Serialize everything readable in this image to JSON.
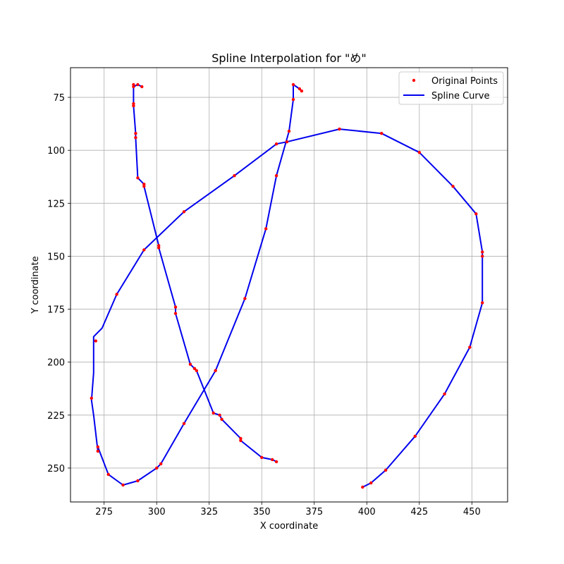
{
  "chart_data": {
    "type": "line",
    "title": "Spline Interpolation for \"め\"",
    "xlabel": "X coordinate",
    "ylabel": "Y coordinate",
    "xlim": [
      259,
      467
    ],
    "ylim": [
      266,
      61
    ],
    "y_inverted": true,
    "grid": true,
    "legend_position": "top-right",
    "xticks": [
      275,
      300,
      325,
      350,
      375,
      400,
      425,
      450
    ],
    "yticks": [
      75,
      100,
      125,
      150,
      175,
      200,
      225,
      250
    ],
    "series": [
      {
        "name": "Original Points",
        "style": "points",
        "color": "#ff0000",
        "x": [
          289,
          289,
          290,
          290,
          291,
          294,
          294,
          301,
          301,
          309,
          309,
          316,
          318,
          319,
          327,
          330,
          331,
          340,
          340,
          350,
          355,
          357,
          293,
          291,
          289,
          289,
          365,
          368,
          369,
          365,
          363,
          357,
          352,
          342,
          328,
          313,
          302,
          300,
          291,
          284,
          277,
          272,
          272,
          269,
          271,
          281,
          294,
          313,
          337,
          357,
          362,
          387,
          407,
          425,
          441,
          452,
          455,
          455,
          455,
          449,
          437,
          423,
          409,
          402,
          398
        ],
        "y": [
          69,
          79,
          92,
          94,
          113,
          116,
          117,
          145,
          146,
          174,
          177,
          201,
          203,
          204,
          224,
          225,
          227,
          236,
          237,
          245,
          246,
          247,
          70,
          69,
          70,
          78,
          69,
          71,
          72,
          76,
          91,
          112,
          137,
          170,
          204,
          229,
          248,
          250,
          256,
          258,
          253,
          240,
          242,
          217,
          190,
          168,
          147,
          129,
          112,
          97,
          96,
          90,
          92,
          101,
          117,
          130,
          148,
          150,
          172,
          193,
          215,
          235,
          251,
          257,
          259
        ]
      },
      {
        "name": "Spline Curve",
        "style": "line",
        "color": "#0000ee",
        "segments": [
          {
            "x": [
              293,
              291,
              289,
              289,
              289,
              290,
              290,
              291,
              294,
              294,
              301,
              301,
              309,
              309,
              316,
              318,
              319,
              327,
              330,
              331,
              340,
              340,
              350,
              355,
              357
            ],
            "y": [
              70,
              69,
              70,
              78,
              79,
              92,
              94,
              113,
              116,
              117,
              145,
              146,
              174,
              177,
              201,
              203,
              204,
              224,
              225,
              227,
              236,
              237,
              245,
              246,
              247
            ]
          },
          {
            "x": [
              369,
              368,
              365,
              365,
              363,
              357,
              352,
              342,
              328,
              313,
              302,
              300,
              291,
              284,
              277,
              272,
              272,
              270,
              269,
              270,
              270,
              274,
              281,
              294,
              313,
              337,
              357,
              362,
              387,
              407,
              425,
              441,
              452,
              455,
              455,
              455,
              449,
              437,
              423,
              409,
              402,
              398
            ],
            "y": [
              72,
              71,
              69,
              76,
              91,
              112,
              137,
              170,
              204,
              229,
              248,
              250,
              256,
              258,
              253,
              240,
              242,
              225,
              218,
              205,
              188,
              184,
              168,
              147,
              129,
              112,
              97,
              96,
              90,
              92,
              101,
              117,
              130,
              148,
              150,
              172,
              193,
              215,
              235,
              251,
              257,
              259
            ]
          }
        ]
      }
    ]
  }
}
